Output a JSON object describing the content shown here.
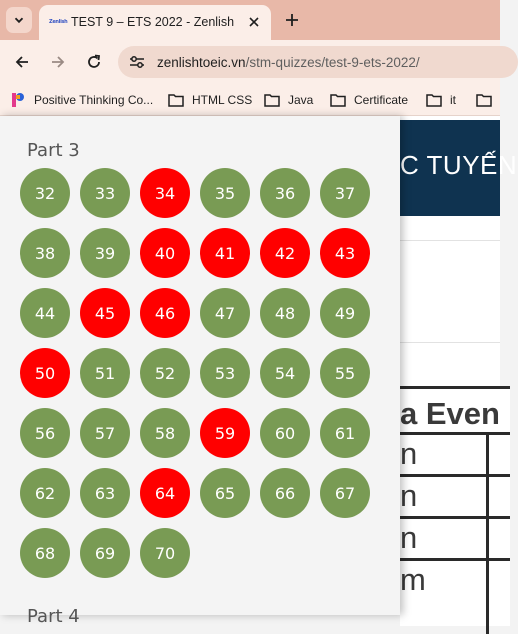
{
  "colors": {
    "correct": "#799b54",
    "wrong": "#ff0000"
  },
  "browser": {
    "tab": {
      "favicon_text": "Zenlish",
      "title": "TEST 9 – ETS 2022 - Zenlish"
    },
    "icons": {
      "tab_list": "chevron-down-icon",
      "close": "close-icon",
      "new_tab": "plus-icon",
      "back": "arrow-left-icon",
      "forward": "arrow-right-icon",
      "reload": "reload-icon",
      "site_info": "tune-icon"
    },
    "address": {
      "host": "zenlishtoeic.vn",
      "path": "/stm-quizzes/test-9-ets-2022/"
    },
    "bookmarks": [
      {
        "label": "Positive Thinking Co...",
        "icon": "pinterest-icon"
      },
      {
        "label": "HTML CSS",
        "icon": "folder-icon"
      },
      {
        "label": "Java",
        "icon": "folder-icon"
      },
      {
        "label": "Certificate",
        "icon": "folder-icon"
      },
      {
        "label": "it",
        "icon": "folder-icon"
      },
      {
        "label": "",
        "icon": "folder-icon"
      }
    ]
  },
  "page": {
    "hero_text": "C TUYẾN",
    "scan": {
      "title": "a Even",
      "rows": [
        "n",
        "n",
        "n",
        "m"
      ]
    }
  },
  "panel": {
    "part3_title": "Part 3",
    "part4_title": "Part 4",
    "questions": [
      {
        "n": "32",
        "status": "correct"
      },
      {
        "n": "33",
        "status": "correct"
      },
      {
        "n": "34",
        "status": "wrong"
      },
      {
        "n": "35",
        "status": "correct"
      },
      {
        "n": "36",
        "status": "correct"
      },
      {
        "n": "37",
        "status": "correct"
      },
      {
        "n": "38",
        "status": "correct"
      },
      {
        "n": "39",
        "status": "correct"
      },
      {
        "n": "40",
        "status": "wrong"
      },
      {
        "n": "41",
        "status": "wrong"
      },
      {
        "n": "42",
        "status": "wrong"
      },
      {
        "n": "43",
        "status": "wrong"
      },
      {
        "n": "44",
        "status": "correct"
      },
      {
        "n": "45",
        "status": "wrong"
      },
      {
        "n": "46",
        "status": "wrong"
      },
      {
        "n": "47",
        "status": "correct"
      },
      {
        "n": "48",
        "status": "correct"
      },
      {
        "n": "49",
        "status": "correct"
      },
      {
        "n": "50",
        "status": "wrong"
      },
      {
        "n": "51",
        "status": "correct"
      },
      {
        "n": "52",
        "status": "correct"
      },
      {
        "n": "53",
        "status": "correct"
      },
      {
        "n": "54",
        "status": "correct"
      },
      {
        "n": "55",
        "status": "correct"
      },
      {
        "n": "56",
        "status": "correct"
      },
      {
        "n": "57",
        "status": "correct"
      },
      {
        "n": "58",
        "status": "correct"
      },
      {
        "n": "59",
        "status": "wrong"
      },
      {
        "n": "60",
        "status": "correct"
      },
      {
        "n": "61",
        "status": "correct"
      },
      {
        "n": "62",
        "status": "correct"
      },
      {
        "n": "63",
        "status": "correct"
      },
      {
        "n": "64",
        "status": "wrong"
      },
      {
        "n": "65",
        "status": "correct"
      },
      {
        "n": "66",
        "status": "correct"
      },
      {
        "n": "67",
        "status": "correct"
      },
      {
        "n": "68",
        "status": "correct"
      },
      {
        "n": "69",
        "status": "correct"
      },
      {
        "n": "70",
        "status": "correct"
      }
    ]
  }
}
